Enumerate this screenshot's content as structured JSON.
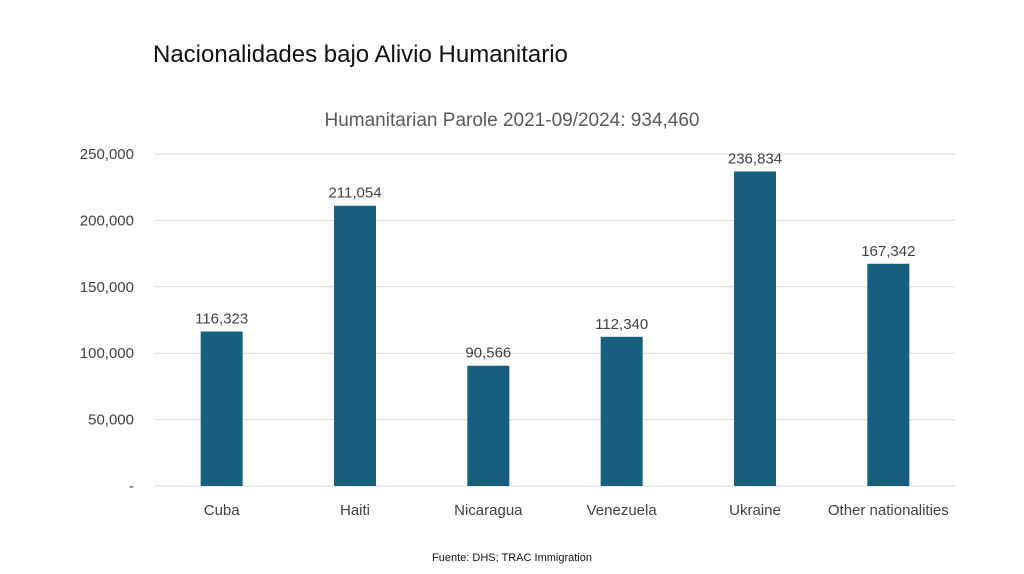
{
  "slide": {
    "title": "Nacionalidades bajo Alivio Humanitario",
    "source": "Fuente: DHS; TRAC Immigration"
  },
  "chart_data": {
    "type": "bar",
    "title": "Humanitarian Parole 2021-09/2024: 934,460",
    "categories": [
      "Cuba",
      "Haiti",
      "Nicaragua",
      "Venezuela",
      "Ukraine",
      "Other nationalities"
    ],
    "values": [
      116323,
      211054,
      90566,
      112340,
      236834,
      167342
    ],
    "data_labels": [
      "116,323",
      "211,054",
      "90,566",
      "112,340",
      "236,834",
      "167,342"
    ],
    "ylim": [
      0,
      250000
    ],
    "yticks": [
      0,
      50000,
      100000,
      150000,
      200000,
      250000
    ],
    "ytick_labels": [
      "-",
      "50,000",
      "100,000",
      "150,000",
      "200,000",
      "250,000"
    ],
    "xlabel": "",
    "ylabel": "",
    "grid": true,
    "legend": "none",
    "bar_color": "#185f7f",
    "grid_color": "#d9d9d9"
  }
}
